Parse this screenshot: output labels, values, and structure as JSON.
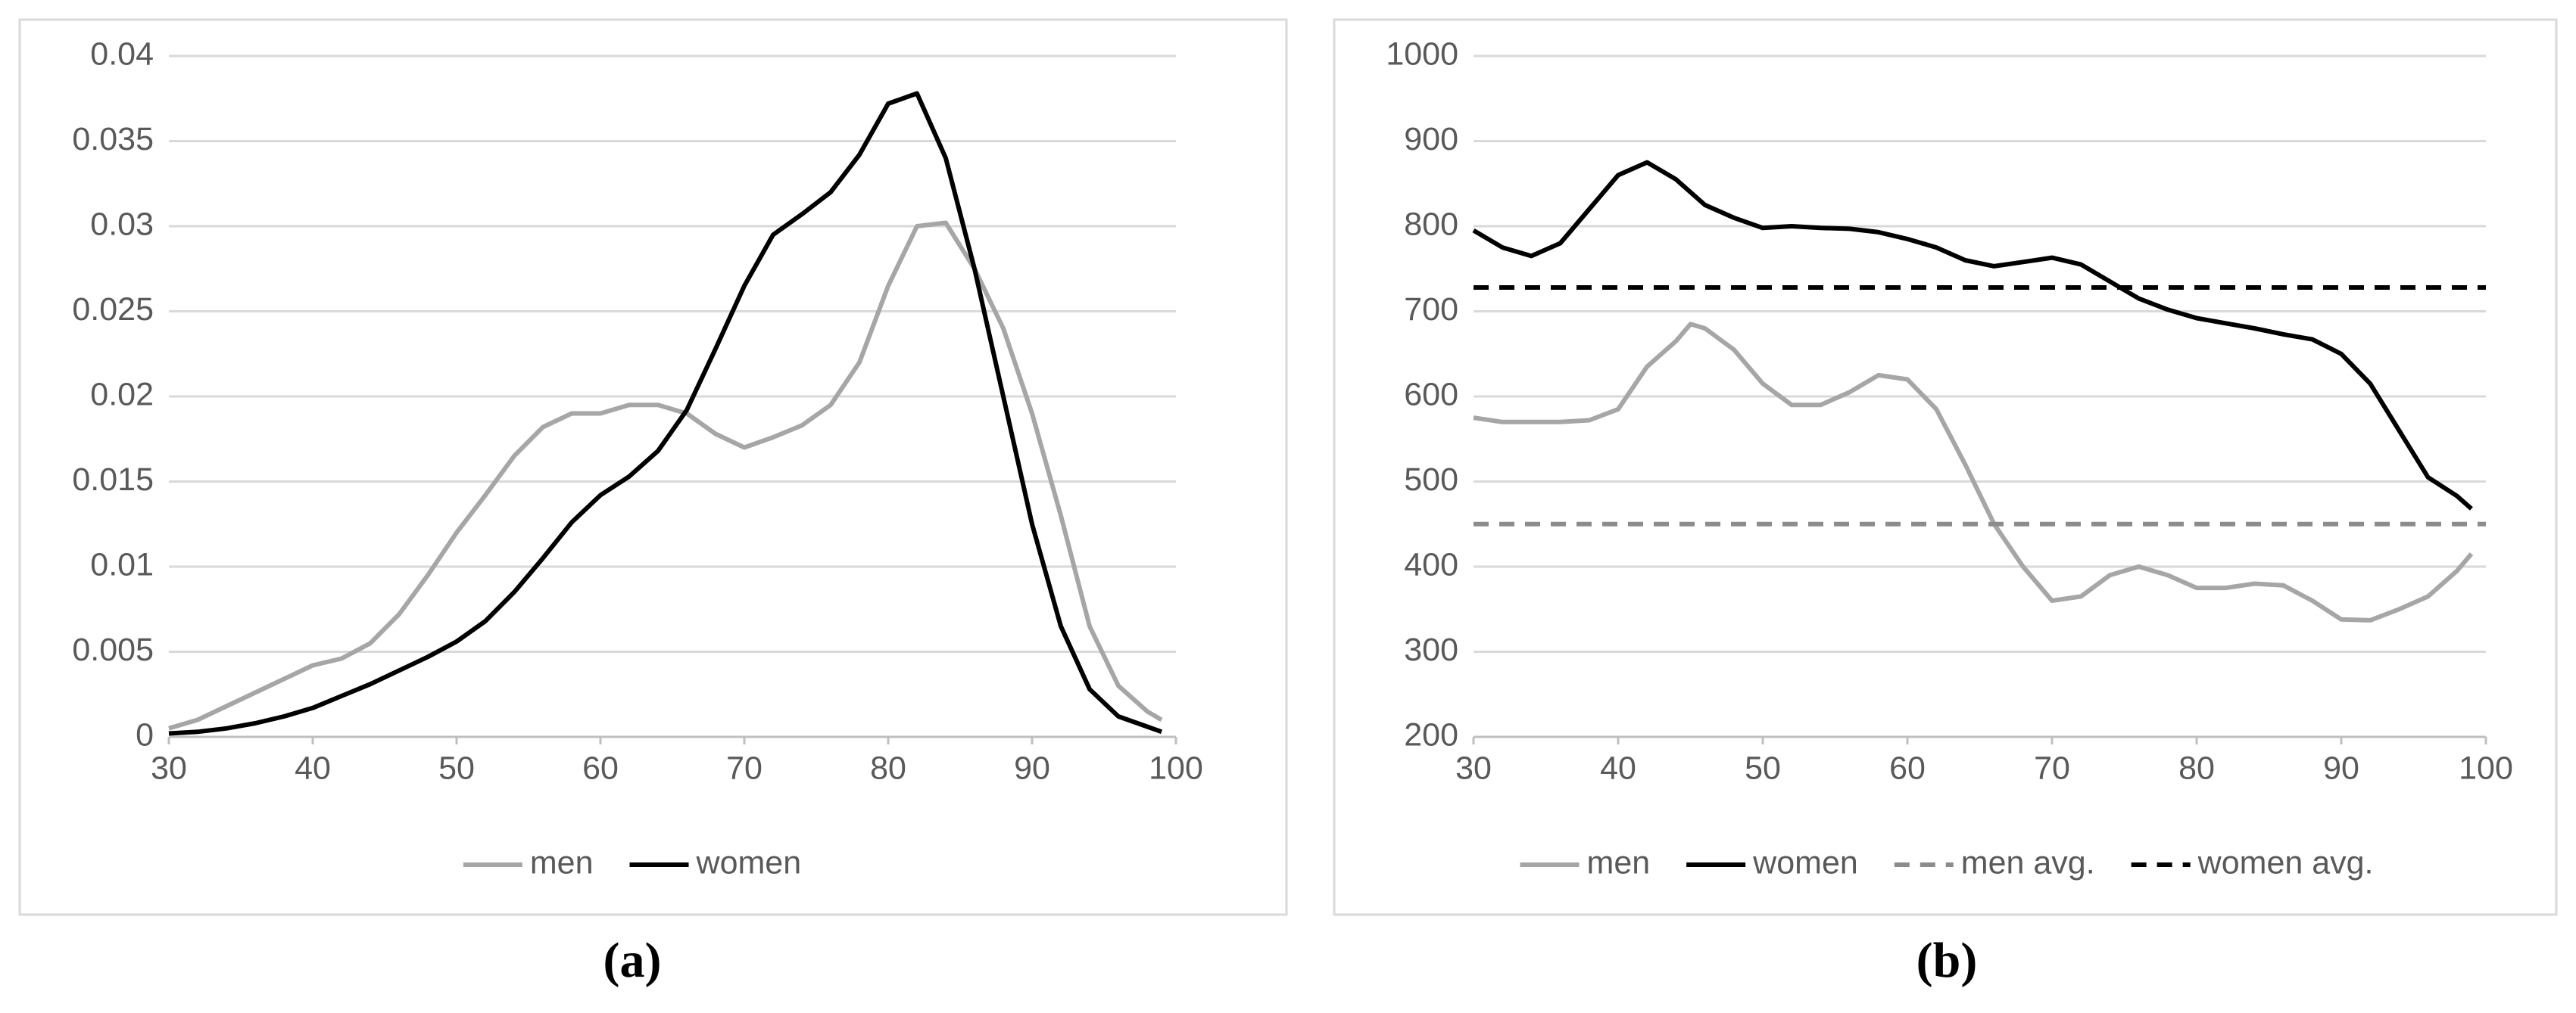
{
  "chart_data": [
    {
      "type": "line",
      "label": "(a)",
      "grid": true,
      "legend": "bottom",
      "x": [
        30,
        32,
        34,
        36,
        38,
        40,
        42,
        44,
        46,
        48,
        50,
        52,
        54,
        56,
        58,
        60,
        62,
        64,
        66,
        68,
        70,
        72,
        74,
        76,
        78,
        80,
        82,
        84,
        86,
        88,
        90,
        92,
        94,
        96,
        98,
        99
      ],
      "xlim": [
        30,
        100
      ],
      "xticks": [
        30,
        40,
        50,
        60,
        70,
        80,
        90,
        100
      ],
      "ylim": [
        0,
        0.04
      ],
      "yticks": [
        0,
        0.005,
        0.01,
        0.015,
        0.02,
        0.025,
        0.03,
        0.035,
        0.04
      ],
      "series": [
        {
          "name": "men",
          "color": "#a6a6a6",
          "dashed": false,
          "values": [
            0.0005,
            0.001,
            0.0018,
            0.0026,
            0.0034,
            0.0042,
            0.0046,
            0.0055,
            0.0072,
            0.0095,
            0.012,
            0.0142,
            0.0165,
            0.0182,
            0.019,
            0.019,
            0.0195,
            0.0195,
            0.019,
            0.0178,
            0.017,
            0.0176,
            0.0183,
            0.0195,
            0.022,
            0.0265,
            0.03,
            0.0302,
            0.0275,
            0.024,
            0.019,
            0.013,
            0.0065,
            0.003,
            0.0015,
            0.001
          ]
        },
        {
          "name": "women",
          "color": "#000000",
          "dashed": false,
          "values": [
            0.0002,
            0.0003,
            0.0005,
            0.0008,
            0.0012,
            0.0017,
            0.0024,
            0.0031,
            0.0039,
            0.0047,
            0.0056,
            0.0068,
            0.0085,
            0.0105,
            0.0126,
            0.0142,
            0.0153,
            0.0168,
            0.0192,
            0.0228,
            0.0265,
            0.0295,
            0.0307,
            0.032,
            0.0342,
            0.0372,
            0.0378,
            0.034,
            0.0275,
            0.02,
            0.0125,
            0.0065,
            0.0028,
            0.0012,
            0.0006,
            0.0003
          ]
        }
      ]
    },
    {
      "type": "line",
      "label": "(b)",
      "grid": true,
      "legend": "bottom",
      "x": [
        30,
        32,
        34,
        36,
        38,
        40,
        42,
        44,
        45,
        46,
        48,
        50,
        52,
        54,
        56,
        58,
        60,
        62,
        64,
        66,
        68,
        70,
        72,
        74,
        76,
        78,
        80,
        82,
        84,
        86,
        88,
        90,
        92,
        94,
        96,
        98,
        99
      ],
      "xlim": [
        30,
        100
      ],
      "xticks": [
        30,
        40,
        50,
        60,
        70,
        80,
        90,
        100
      ],
      "ylim": [
        200,
        1000
      ],
      "yticks": [
        200,
        300,
        400,
        500,
        600,
        700,
        800,
        900,
        1000
      ],
      "series": [
        {
          "name": "men",
          "color": "#a6a6a6",
          "dashed": false,
          "values": [
            575,
            570,
            570,
            570,
            572,
            585,
            635,
            665,
            685,
            680,
            655,
            615,
            590,
            590,
            605,
            625,
            620,
            585,
            520,
            450,
            400,
            360,
            365,
            390,
            400,
            390,
            375,
            375,
            380,
            378,
            360,
            338,
            337,
            350,
            365,
            395,
            415
          ]
        },
        {
          "name": "women",
          "color": "#000000",
          "dashed": false,
          "values": [
            795,
            775,
            765,
            780,
            820,
            860,
            875,
            855,
            840,
            825,
            810,
            798,
            800,
            798,
            797,
            793,
            785,
            775,
            760,
            753,
            758,
            763,
            755,
            735,
            715,
            702,
            692,
            686,
            680,
            673,
            667,
            650,
            615,
            560,
            505,
            483,
            468
          ]
        },
        {
          "name": "men avg.",
          "color": "#8c8c8c",
          "dashed": true,
          "x": [
            30,
            100
          ],
          "values": [
            450,
            450
          ]
        },
        {
          "name": "women avg.",
          "color": "#000000",
          "dashed": true,
          "x": [
            30,
            100
          ],
          "values": [
            728,
            728
          ]
        }
      ]
    }
  ]
}
